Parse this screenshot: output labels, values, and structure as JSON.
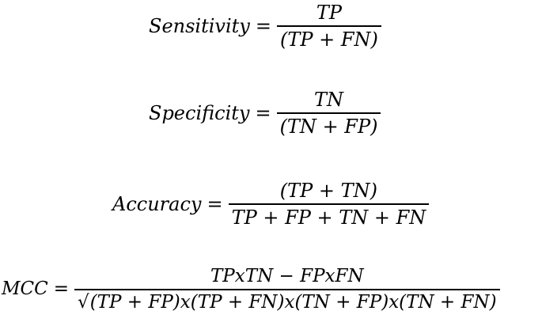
{
  "formulas": [
    {
      "lhs": "Sensitivity",
      "eq": "=",
      "numerator": "TP",
      "denominator": "(TP + FN)"
    },
    {
      "lhs": "Specificity",
      "eq": "=",
      "numerator": "TN",
      "denominator": "(TN + FP)"
    },
    {
      "lhs": "Accuracy",
      "eq": "=",
      "numerator": "(TP + TN)",
      "denominator": "TP + FP + TN + FN"
    },
    {
      "lhs": "MCC",
      "eq": "=",
      "numerator": "TPxTN − FPxFN",
      "radical": "√",
      "denominator": "(TP + FP)x(TP + FN)x(TN + FP)x(TN + FN)"
    }
  ]
}
